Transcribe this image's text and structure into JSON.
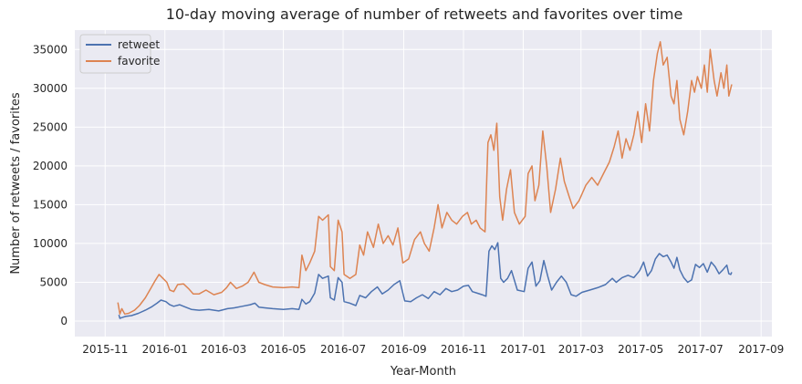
{
  "chart_data": {
    "type": "line",
    "title": "10-day moving average of number of retweets and favorites over time",
    "xlabel": "Year-Month",
    "ylabel": "Number of retweets / favorites",
    "xlim": [
      "2015-10-01",
      "2017-09-12"
    ],
    "ylim": [
      -2000,
      37500
    ],
    "x_ticks": [
      "2015-11",
      "2016-01",
      "2016-03",
      "2016-05",
      "2016-07",
      "2016-09",
      "2016-11",
      "2017-01",
      "2017-03",
      "2017-05",
      "2017-07",
      "2017-09"
    ],
    "y_ticks": [
      0,
      5000,
      10000,
      15000,
      20000,
      25000,
      30000,
      35000
    ],
    "y_tick_labels": [
      "0",
      "5000",
      "10000",
      "15000",
      "20000",
      "25000",
      "30000",
      "35000"
    ],
    "grid": true,
    "legend_position": "top-left",
    "series": [
      {
        "name": "retweet",
        "color": "#4c72b0",
        "points": [
          [
            "2015-11-15",
            800
          ],
          [
            "2015-11-16",
            350
          ],
          [
            "2015-11-18",
            450
          ],
          [
            "2015-11-22",
            600
          ],
          [
            "2015-11-28",
            700
          ],
          [
            "2015-12-05",
            1000
          ],
          [
            "2015-12-12",
            1400
          ],
          [
            "2015-12-18",
            1800
          ],
          [
            "2015-12-24",
            2300
          ],
          [
            "2015-12-28",
            2700
          ],
          [
            "2016-01-02",
            2500
          ],
          [
            "2016-01-06",
            2100
          ],
          [
            "2016-01-10",
            1900
          ],
          [
            "2016-01-16",
            2100
          ],
          [
            "2016-01-22",
            1800
          ],
          [
            "2016-01-28",
            1500
          ],
          [
            "2016-02-05",
            1400
          ],
          [
            "2016-02-15",
            1500
          ],
          [
            "2016-02-25",
            1300
          ],
          [
            "2016-03-05",
            1600
          ],
          [
            "2016-03-12",
            1700
          ],
          [
            "2016-03-20",
            1900
          ],
          [
            "2016-03-28",
            2100
          ],
          [
            "2016-04-02",
            2300
          ],
          [
            "2016-04-06",
            1800
          ],
          [
            "2016-04-12",
            1700
          ],
          [
            "2016-04-20",
            1600
          ],
          [
            "2016-05-01",
            1500
          ],
          [
            "2016-05-10",
            1600
          ],
          [
            "2016-05-17",
            1500
          ],
          [
            "2016-05-20",
            2800
          ],
          [
            "2016-05-24",
            2200
          ],
          [
            "2016-05-28",
            2500
          ],
          [
            "2016-06-02",
            3600
          ],
          [
            "2016-06-06",
            6000
          ],
          [
            "2016-06-10",
            5500
          ],
          [
            "2016-06-16",
            5800
          ],
          [
            "2016-06-18",
            3000
          ],
          [
            "2016-06-22",
            2700
          ],
          [
            "2016-06-26",
            5600
          ],
          [
            "2016-06-30",
            5000
          ],
          [
            "2016-07-02",
            2500
          ],
          [
            "2016-07-08",
            2300
          ],
          [
            "2016-07-14",
            2000
          ],
          [
            "2016-07-18",
            3300
          ],
          [
            "2016-07-24",
            3000
          ],
          [
            "2016-07-30",
            3800
          ],
          [
            "2016-08-05",
            4400
          ],
          [
            "2016-08-10",
            3500
          ],
          [
            "2016-08-16",
            4000
          ],
          [
            "2016-08-22",
            4700
          ],
          [
            "2016-08-28",
            5200
          ],
          [
            "2016-09-02",
            2600
          ],
          [
            "2016-09-08",
            2500
          ],
          [
            "2016-09-14",
            3000
          ],
          [
            "2016-09-20",
            3400
          ],
          [
            "2016-09-26",
            2900
          ],
          [
            "2016-10-02",
            3800
          ],
          [
            "2016-10-08",
            3400
          ],
          [
            "2016-10-14",
            4200
          ],
          [
            "2016-10-20",
            3800
          ],
          [
            "2016-10-26",
            4000
          ],
          [
            "2016-11-01",
            4500
          ],
          [
            "2016-11-06",
            4600
          ],
          [
            "2016-11-10",
            3800
          ],
          [
            "2016-11-15",
            3600
          ],
          [
            "2016-11-20",
            3400
          ],
          [
            "2016-11-24",
            3200
          ],
          [
            "2016-11-27",
            9000
          ],
          [
            "2016-11-30",
            9700
          ],
          [
            "2016-12-03",
            9200
          ],
          [
            "2016-12-06",
            10100
          ],
          [
            "2016-12-09",
            5500
          ],
          [
            "2016-12-12",
            5000
          ],
          [
            "2016-12-16",
            5500
          ],
          [
            "2016-12-20",
            6500
          ],
          [
            "2016-12-26",
            4000
          ],
          [
            "2017-01-02",
            3800
          ],
          [
            "2017-01-06",
            6800
          ],
          [
            "2017-01-10",
            7600
          ],
          [
            "2017-01-14",
            4500
          ],
          [
            "2017-01-18",
            5200
          ],
          [
            "2017-01-22",
            7800
          ],
          [
            "2017-01-26",
            5800
          ],
          [
            "2017-01-30",
            4000
          ],
          [
            "2017-02-04",
            5000
          ],
          [
            "2017-02-09",
            5800
          ],
          [
            "2017-02-14",
            5000
          ],
          [
            "2017-02-19",
            3400
          ],
          [
            "2017-02-24",
            3200
          ],
          [
            "2017-03-02",
            3700
          ],
          [
            "2017-03-10",
            4000
          ],
          [
            "2017-03-18",
            4300
          ],
          [
            "2017-03-26",
            4700
          ],
          [
            "2017-04-02",
            5500
          ],
          [
            "2017-04-06",
            5000
          ],
          [
            "2017-04-12",
            5600
          ],
          [
            "2017-04-18",
            5900
          ],
          [
            "2017-04-24",
            5600
          ],
          [
            "2017-04-30",
            6500
          ],
          [
            "2017-05-04",
            7600
          ],
          [
            "2017-05-08",
            5800
          ],
          [
            "2017-05-12",
            6500
          ],
          [
            "2017-05-16",
            8000
          ],
          [
            "2017-05-20",
            8700
          ],
          [
            "2017-05-24",
            8300
          ],
          [
            "2017-05-28",
            8500
          ],
          [
            "2017-06-01",
            7600
          ],
          [
            "2017-06-04",
            6800
          ],
          [
            "2017-06-07",
            8200
          ],
          [
            "2017-06-10",
            6600
          ],
          [
            "2017-06-14",
            5600
          ],
          [
            "2017-06-18",
            5000
          ],
          [
            "2017-06-22",
            5300
          ],
          [
            "2017-06-26",
            7300
          ],
          [
            "2017-06-30",
            6900
          ],
          [
            "2017-07-04",
            7400
          ],
          [
            "2017-07-08",
            6300
          ],
          [
            "2017-07-12",
            7600
          ],
          [
            "2017-07-16",
            7000
          ],
          [
            "2017-07-20",
            6100
          ],
          [
            "2017-07-24",
            6600
          ],
          [
            "2017-07-28",
            7200
          ],
          [
            "2017-07-30",
            6100
          ],
          [
            "2017-08-01",
            6000
          ],
          [
            "2017-08-02",
            6300
          ]
        ]
      },
      {
        "name": "favorite",
        "color": "#dd8452",
        "points": [
          [
            "2015-11-14",
            2400
          ],
          [
            "2015-11-16",
            900
          ],
          [
            "2015-11-18",
            1600
          ],
          [
            "2015-11-21",
            900
          ],
          [
            "2015-11-25",
            1000
          ],
          [
            "2015-12-01",
            1400
          ],
          [
            "2015-12-06",
            2000
          ],
          [
            "2015-12-12",
            3000
          ],
          [
            "2015-12-18",
            4300
          ],
          [
            "2015-12-22",
            5200
          ],
          [
            "2015-12-26",
            6000
          ],
          [
            "2015-12-30",
            5500
          ],
          [
            "2016-01-03",
            5000
          ],
          [
            "2016-01-06",
            4000
          ],
          [
            "2016-01-10",
            3800
          ],
          [
            "2016-01-14",
            4700
          ],
          [
            "2016-01-20",
            4800
          ],
          [
            "2016-01-25",
            4200
          ],
          [
            "2016-01-30",
            3500
          ],
          [
            "2016-02-05",
            3500
          ],
          [
            "2016-02-12",
            4000
          ],
          [
            "2016-02-20",
            3400
          ],
          [
            "2016-02-28",
            3700
          ],
          [
            "2016-03-04",
            4300
          ],
          [
            "2016-03-08",
            5000
          ],
          [
            "2016-03-14",
            4200
          ],
          [
            "2016-03-20",
            4500
          ],
          [
            "2016-03-26",
            5000
          ],
          [
            "2016-04-01",
            6300
          ],
          [
            "2016-04-06",
            5000
          ],
          [
            "2016-04-12",
            4700
          ],
          [
            "2016-04-20",
            4400
          ],
          [
            "2016-05-01",
            4300
          ],
          [
            "2016-05-10",
            4400
          ],
          [
            "2016-05-17",
            4300
          ],
          [
            "2016-05-20",
            8500
          ],
          [
            "2016-05-24",
            6500
          ],
          [
            "2016-05-28",
            7500
          ],
          [
            "2016-06-02",
            9000
          ],
          [
            "2016-06-06",
            13500
          ],
          [
            "2016-06-10",
            13000
          ],
          [
            "2016-06-16",
            13700
          ],
          [
            "2016-06-18",
            7000
          ],
          [
            "2016-06-22",
            6500
          ],
          [
            "2016-06-26",
            13000
          ],
          [
            "2016-06-30",
            11500
          ],
          [
            "2016-07-02",
            6000
          ],
          [
            "2016-07-08",
            5500
          ],
          [
            "2016-07-14",
            6000
          ],
          [
            "2016-07-18",
            9800
          ],
          [
            "2016-07-22",
            8500
          ],
          [
            "2016-07-26",
            11500
          ],
          [
            "2016-08-01",
            9500
          ],
          [
            "2016-08-06",
            12500
          ],
          [
            "2016-08-11",
            10000
          ],
          [
            "2016-08-16",
            11000
          ],
          [
            "2016-08-21",
            9800
          ],
          [
            "2016-08-26",
            12000
          ],
          [
            "2016-08-31",
            7500
          ],
          [
            "2016-09-06",
            8000
          ],
          [
            "2016-09-12",
            10500
          ],
          [
            "2016-09-18",
            11500
          ],
          [
            "2016-09-22",
            10000
          ],
          [
            "2016-09-27",
            9000
          ],
          [
            "2016-10-02",
            12000
          ],
          [
            "2016-10-06",
            15000
          ],
          [
            "2016-10-10",
            12000
          ],
          [
            "2016-10-15",
            14000
          ],
          [
            "2016-10-20",
            13000
          ],
          [
            "2016-10-25",
            12500
          ],
          [
            "2016-10-31",
            13500
          ],
          [
            "2016-11-05",
            14000
          ],
          [
            "2016-11-09",
            12500
          ],
          [
            "2016-11-14",
            13000
          ],
          [
            "2016-11-18",
            12000
          ],
          [
            "2016-11-23",
            11500
          ],
          [
            "2016-11-26",
            23000
          ],
          [
            "2016-11-29",
            24000
          ],
          [
            "2016-12-02",
            22000
          ],
          [
            "2016-12-05",
            25500
          ],
          [
            "2016-12-08",
            16000
          ],
          [
            "2016-12-11",
            13000
          ],
          [
            "2016-12-15",
            17000
          ],
          [
            "2016-12-19",
            19500
          ],
          [
            "2016-12-23",
            14000
          ],
          [
            "2016-12-28",
            12500
          ],
          [
            "2017-01-03",
            13500
          ],
          [
            "2017-01-06",
            19000
          ],
          [
            "2017-01-10",
            20000
          ],
          [
            "2017-01-13",
            15500
          ],
          [
            "2017-01-17",
            17500
          ],
          [
            "2017-01-21",
            24500
          ],
          [
            "2017-01-25",
            20000
          ],
          [
            "2017-01-29",
            14000
          ],
          [
            "2017-02-03",
            17000
          ],
          [
            "2017-02-08",
            21000
          ],
          [
            "2017-02-12",
            18000
          ],
          [
            "2017-02-17",
            16000
          ],
          [
            "2017-02-21",
            14500
          ],
          [
            "2017-02-27",
            15500
          ],
          [
            "2017-03-06",
            17500
          ],
          [
            "2017-03-12",
            18500
          ],
          [
            "2017-03-18",
            17500
          ],
          [
            "2017-03-24",
            19000
          ],
          [
            "2017-03-30",
            20500
          ],
          [
            "2017-04-04",
            22500
          ],
          [
            "2017-04-08",
            24500
          ],
          [
            "2017-04-12",
            21000
          ],
          [
            "2017-04-16",
            23500
          ],
          [
            "2017-04-20",
            22000
          ],
          [
            "2017-04-24",
            24000
          ],
          [
            "2017-04-28",
            27000
          ],
          [
            "2017-05-02",
            23000
          ],
          [
            "2017-05-06",
            28000
          ],
          [
            "2017-05-10",
            24500
          ],
          [
            "2017-05-14",
            31000
          ],
          [
            "2017-05-18",
            34500
          ],
          [
            "2017-05-21",
            36000
          ],
          [
            "2017-05-24",
            33000
          ],
          [
            "2017-05-28",
            34000
          ],
          [
            "2017-06-01",
            29000
          ],
          [
            "2017-06-04",
            28000
          ],
          [
            "2017-06-07",
            31000
          ],
          [
            "2017-06-10",
            26000
          ],
          [
            "2017-06-14",
            24000
          ],
          [
            "2017-06-18",
            27000
          ],
          [
            "2017-06-22",
            31000
          ],
          [
            "2017-06-25",
            29500
          ],
          [
            "2017-06-28",
            31500
          ],
          [
            "2017-07-02",
            30000
          ],
          [
            "2017-07-05",
            33000
          ],
          [
            "2017-07-08",
            29500
          ],
          [
            "2017-07-11",
            35000
          ],
          [
            "2017-07-15",
            31000
          ],
          [
            "2017-07-18",
            29000
          ],
          [
            "2017-07-22",
            32000
          ],
          [
            "2017-07-25",
            30000
          ],
          [
            "2017-07-28",
            33000
          ],
          [
            "2017-07-30",
            29000
          ],
          [
            "2017-08-01",
            30000
          ],
          [
            "2017-08-02",
            30500
          ]
        ]
      }
    ]
  }
}
